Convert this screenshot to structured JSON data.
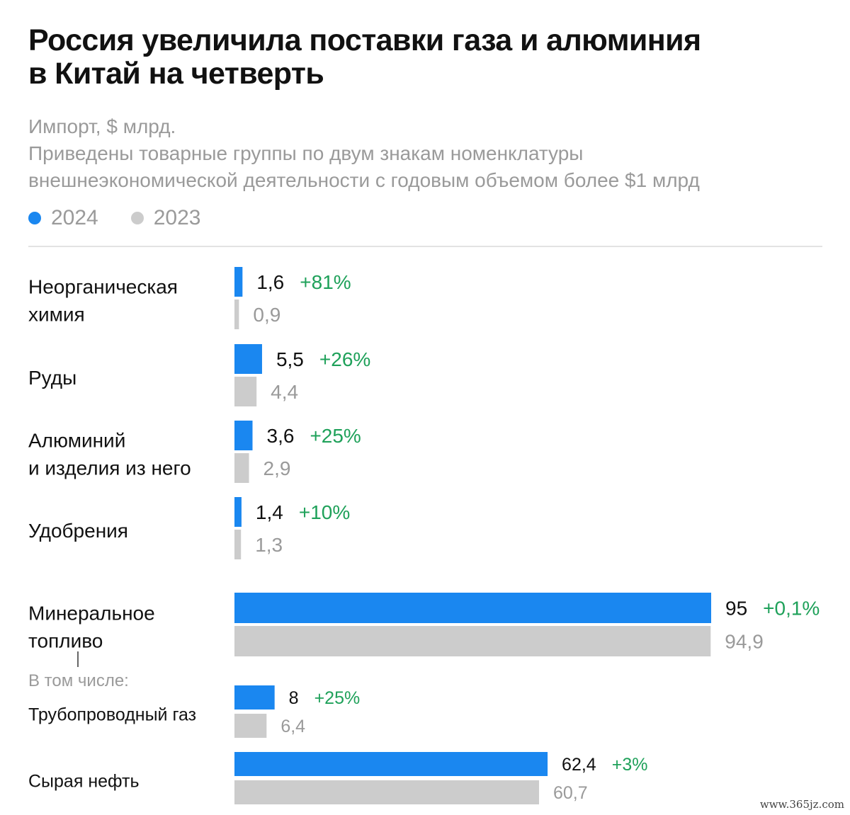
{
  "header": {
    "title_line1": "Россия увеличила поставки газа и алюминия",
    "title_line2": "в Китай на четверть",
    "subtitle_line1": "Импорт, $ млрд.",
    "subtitle_line2": "Приведены товарные группы по двум знакам номенклатуры",
    "subtitle_line3": "внешнеэкономической деятельности с годовым объемом более $1 млрд"
  },
  "legend": [
    {
      "label": "2024",
      "color": "#1a87f0"
    },
    {
      "label": "2023",
      "color": "#cccccc"
    }
  ],
  "colors": {
    "bar_2024": "#1a87f0",
    "bar_2023": "#cccccc",
    "change_text": "#1fa15a",
    "value_2024_text": "#111111",
    "value_2023_text": "#9a9a9a",
    "label_text": "#111111",
    "note_text": "#9a9a9a"
  },
  "chart_data": {
    "type": "bar",
    "orientation": "horizontal",
    "xlim": [
      0,
      95
    ],
    "categories": [
      "Неорганическая химия",
      "Руды",
      "Алюминий и изделия из него",
      "Удобрения",
      "Минеральное топливо",
      "Трубопроводный газ",
      "Сырая нефть"
    ],
    "category_label_lines": [
      [
        "Неорганическая",
        "химия"
      ],
      [
        "Руды"
      ],
      [
        "Алюминий",
        "и изделия из него"
      ],
      [
        "Удобрения"
      ],
      [
        "Минеральное",
        "топливо"
      ],
      [
        "Трубопроводный газ"
      ],
      [
        "Сырая нефть"
      ]
    ],
    "series": [
      {
        "name": "2024",
        "values": [
          1.6,
          5.5,
          3.6,
          1.4,
          95,
          8,
          62.4
        ],
        "labels": [
          "1,6",
          "5,5",
          "3,6",
          "1,4",
          "95",
          "8",
          "62,4"
        ]
      },
      {
        "name": "2023",
        "values": [
          0.9,
          4.4,
          2.9,
          1.3,
          94.9,
          6.4,
          60.7
        ],
        "labels": [
          "0,9",
          "4,4",
          "2,9",
          "1,3",
          "94,9",
          "6,4",
          "60,7"
        ]
      }
    ],
    "changes": [
      "+81%",
      "+26%",
      "+25%",
      "+10%",
      "+0,1%",
      "+25%",
      "+3%"
    ],
    "subgroup_note": "В том числе:",
    "subgroup_parent": "Минеральное топливо",
    "subgroup_items": [
      "Трубопроводный газ",
      "Сырая нефть"
    ]
  },
  "watermark": "www.365jz.com"
}
